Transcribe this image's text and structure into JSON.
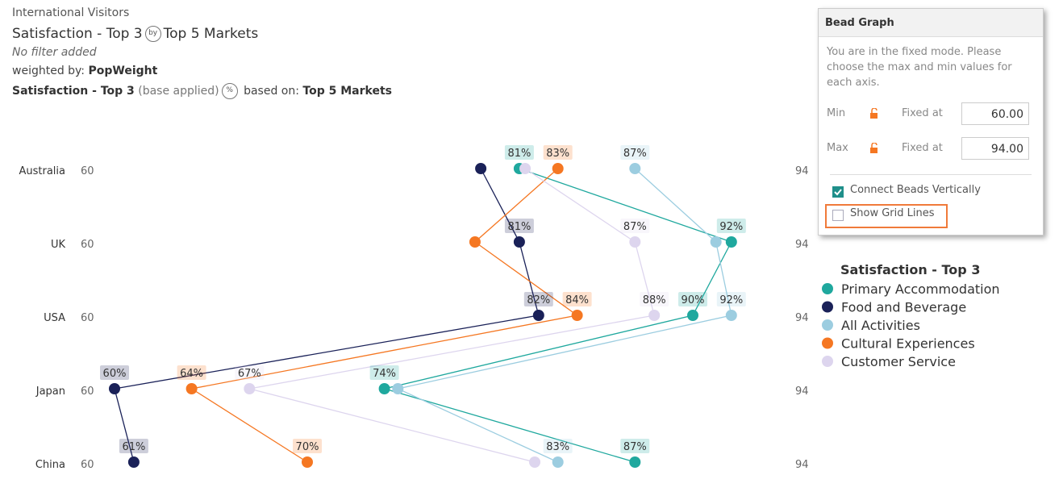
{
  "header": {
    "subtitle": "International Visitors",
    "title_left": "Satisfaction - Top 3",
    "title_icon": "by",
    "title_right": "Top 5 Markets",
    "filter": "No filter added",
    "weighted_label": "weighted by:",
    "weighted_value": "PopWeight",
    "base_measure": "Satisfaction - Top 3",
    "base_note": "(base applied)",
    "base_icon": "%",
    "based_on_label": "based on:",
    "based_on_value": "Top 5 Markets"
  },
  "panel": {
    "title": "Bead Graph",
    "description": "You are in the fixed mode. Please choose the max and min values for each axis.",
    "min_label": "Min",
    "min_mode": "Fixed at",
    "min_value": "60.00",
    "max_label": "Max",
    "max_mode": "Fixed at",
    "max_value": "94.00",
    "connect_label": "Connect Beads Vertically",
    "grid_label": "Show Grid Lines"
  },
  "chart_data": {
    "type": "bead",
    "legend_title": "Satisfaction - Top 3",
    "categories": [
      "Australia",
      "UK",
      "USA",
      "Japan",
      "China"
    ],
    "xlim": [
      60,
      94
    ],
    "connect": true,
    "grid": false,
    "series": [
      {
        "name": "Primary Accommodation",
        "color": "#1fa89e",
        "values": [
          81,
          92,
          90,
          74,
          87
        ],
        "value_labels": [
          "81%",
          "92%",
          "90%",
          "74%",
          "87%"
        ]
      },
      {
        "name": "Food and Beverage",
        "color": "#1a2158",
        "values": [
          79,
          81,
          82,
          60,
          61
        ],
        "value_labels": [
          null,
          "81%",
          "82%",
          "60%",
          "61%"
        ]
      },
      {
        "name": "All Activities",
        "color": "#9ccde0",
        "values": [
          87,
          91.2,
          92,
          74.7,
          83
        ],
        "value_labels": [
          "87%",
          null,
          "92%",
          null,
          "83%"
        ]
      },
      {
        "name": "Cultural Experiences",
        "color": "#f57722",
        "values": [
          83,
          78.7,
          84,
          64,
          70
        ],
        "value_labels": [
          "83%",
          null,
          "84%",
          "64%",
          "70%"
        ]
      },
      {
        "name": "Customer Service",
        "color": "#ddd5ee",
        "values": [
          81.3,
          87,
          88,
          67,
          81.8
        ],
        "value_labels": [
          null,
          "87%",
          "88%",
          "67%",
          null
        ]
      }
    ]
  }
}
